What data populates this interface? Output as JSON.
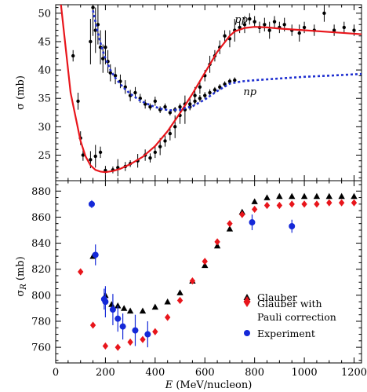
{
  "chart_data": [
    {
      "type": "scatter",
      "ylabel": "σ (mb)",
      "ylim": [
        20.5,
        51.5
      ],
      "xlim": [
        0,
        1230
      ],
      "yticks": [
        25,
        30,
        35,
        40,
        45,
        50
      ],
      "grid": false,
      "annotations": [
        {
          "text": "pp",
          "x": 720,
          "y": 48.3
        },
        {
          "text": "np",
          "x": 755,
          "y": 35.6
        }
      ],
      "series": [
        {
          "name": "pp",
          "kind": "line",
          "color": "#e8151b",
          "x": [
            0,
            60,
            100,
            120,
            140,
            160,
            180,
            200,
            230,
            260,
            300,
            350,
            400,
            450,
            500,
            550,
            600,
            650,
            700,
            720,
            760,
            800,
            850,
            900,
            1000,
            1100,
            1230
          ],
          "y": [
            60,
            36,
            27.5,
            24.8,
            23.2,
            22.4,
            22.1,
            22.0,
            22.2,
            22.6,
            23.4,
            24.7,
            26.6,
            29.2,
            32.4,
            35.8,
            39.5,
            43.2,
            46.0,
            46.8,
            47.4,
            47.6,
            47.5,
            47.3,
            47.0,
            46.7,
            46.3
          ]
        },
        {
          "name": "np",
          "kind": "line",
          "color": "#1f2fd0",
          "x": [
            150,
            160,
            170,
            180,
            190,
            200,
            220,
            240,
            260,
            280,
            300,
            320,
            340,
            360,
            380,
            400,
            430,
            460,
            500,
            550,
            600,
            650,
            700,
            750,
            800,
            900,
            1000,
            1100,
            1230
          ],
          "y": [
            50.5,
            48.5,
            46.5,
            44.8,
            43.3,
            42.0,
            40.0,
            38.6,
            37.5,
            36.6,
            35.8,
            35.2,
            34.6,
            34.2,
            33.8,
            33.5,
            33.1,
            32.9,
            33.0,
            33.6,
            34.8,
            36.3,
            37.6,
            38.0,
            38.2,
            38.5,
            38.8,
            39.0,
            39.3
          ]
        },
        {
          "name": "pp-data",
          "kind": "points",
          "x": [
            70,
            90,
            100,
            110,
            140,
            160,
            180,
            200,
            230,
            250,
            280,
            300,
            330,
            360,
            380,
            400,
            420,
            440,
            460,
            480,
            500,
            520,
            540,
            560,
            580,
            600,
            620,
            640,
            660,
            680,
            700,
            720,
            740,
            760,
            780,
            800,
            820,
            840,
            860,
            880,
            900,
            920,
            950,
            980,
            1000,
            1040,
            1080,
            1120,
            1160,
            1200
          ],
          "y": [
            42.5,
            34.5,
            28.0,
            25.0,
            24.2,
            24.8,
            25.5,
            22.3,
            22.4,
            22.8,
            23.0,
            23.5,
            24.0,
            25.0,
            24.5,
            25.5,
            26.5,
            27.5,
            28.8,
            30.0,
            32.0,
            33.0,
            34.0,
            35.5,
            37.0,
            39.0,
            41.0,
            42.5,
            44.0,
            46.0,
            45.5,
            47.0,
            47.5,
            48.0,
            49.0,
            48.5,
            47.5,
            48.0,
            47.0,
            48.5,
            47.5,
            48.0,
            47.0,
            46.5,
            47.5,
            47.0,
            50.0,
            47.0,
            47.5,
            47.0
          ],
          "err": [
            1.0,
            1.5,
            1.2,
            1.0,
            1.5,
            2.0,
            1.0,
            0.8,
            0.6,
            1.5,
            0.8,
            0.6,
            1.2,
            1.0,
            0.8,
            1.0,
            1.5,
            1.0,
            1.2,
            2.0,
            1.5,
            2.5,
            1.0,
            1.5,
            1.2,
            1.0,
            1.5,
            1.0,
            1.2,
            1.0,
            1.5,
            2.0,
            1.0,
            1.5,
            1.0,
            1.0,
            1.0,
            1.2,
            1.5,
            1.0,
            1.0,
            1.2,
            1.0,
            1.5,
            1.0,
            1.0,
            1.5,
            1.0,
            1.0,
            1.0
          ]
        },
        {
          "name": "np-data",
          "kind": "points",
          "x": [
            140,
            150,
            160,
            170,
            180,
            190,
            200,
            210,
            220,
            240,
            260,
            280,
            300,
            320,
            340,
            360,
            380,
            400,
            420,
            440,
            460,
            480,
            500,
            520,
            540,
            560,
            580,
            600,
            620,
            640,
            660,
            680,
            700,
            720
          ],
          "y": [
            45.0,
            51.0,
            47.0,
            48.0,
            44.0,
            42.0,
            44.0,
            41.5,
            39.5,
            39.0,
            38.0,
            37.0,
            35.5,
            36.0,
            35.0,
            34.0,
            33.5,
            34.5,
            33.0,
            33.5,
            32.5,
            33.0,
            33.5,
            34.0,
            33.5,
            34.5,
            35.0,
            35.5,
            36.0,
            36.5,
            37.0,
            37.5,
            38.0,
            38.2
          ],
          "err": [
            4.0,
            5.0,
            4.0,
            3.5,
            3.0,
            2.5,
            3.0,
            2.0,
            1.5,
            1.5,
            1.2,
            1.2,
            1.0,
            1.0,
            0.8,
            0.8,
            0.6,
            0.8,
            0.6,
            0.6,
            0.5,
            0.5,
            0.6,
            0.6,
            0.6,
            0.6,
            0.6,
            0.6,
            0.6,
            0.5,
            0.5,
            0.5,
            0.5,
            0.5
          ]
        }
      ]
    },
    {
      "type": "scatter",
      "xlabel": "E (MeV/nucleon)",
      "ylabel": "σR (mb)",
      "xlim": [
        0,
        1230
      ],
      "xticks": [
        0,
        200,
        400,
        600,
        800,
        1000,
        1200
      ],
      "ylim": [
        748,
        888
      ],
      "yticks": [
        760,
        780,
        800,
        820,
        840,
        860,
        880
      ],
      "grid": false,
      "legend_position": "bottom-right",
      "series": [
        {
          "name": "Glauber",
          "marker": "triangle",
          "color": "#000000",
          "x": [
            150,
            200,
            225,
            250,
            275,
            300,
            350,
            400,
            450,
            500,
            550,
            600,
            650,
            700,
            750,
            800,
            850,
            900,
            950,
            1000,
            1050,
            1100,
            1150,
            1200
          ],
          "y": [
            830,
            800,
            793,
            792,
            790,
            788,
            788,
            791,
            795,
            802,
            811,
            823,
            838,
            851,
            864,
            872,
            875,
            876,
            876,
            876,
            876,
            876,
            876,
            876
          ]
        },
        {
          "name": "Glauber with Pauli correction",
          "marker": "diamond",
          "color": "#e8151b",
          "x": [
            100,
            150,
            200,
            250,
            300,
            350,
            400,
            450,
            500,
            550,
            600,
            650,
            700,
            750,
            800,
            850,
            900,
            950,
            1000,
            1050,
            1100,
            1150,
            1200
          ],
          "y": [
            818,
            777,
            761,
            760,
            764,
            766,
            772,
            783,
            796,
            811,
            826,
            841,
            855,
            862,
            866,
            869,
            869,
            870,
            870,
            870,
            871,
            871,
            871
          ]
        },
        {
          "name": "Experiment",
          "marker": "circle",
          "color": "#1428d8",
          "x": [
            145,
            160,
            195,
            200,
            230,
            250,
            270,
            320,
            370,
            790,
            950
          ],
          "y": [
            870,
            831,
            797,
            795,
            789,
            782,
            776,
            773,
            770,
            856,
            853
          ],
          "err": [
            3,
            8,
            8,
            12,
            12,
            10,
            10,
            12,
            10,
            6,
            5
          ]
        }
      ]
    }
  ]
}
